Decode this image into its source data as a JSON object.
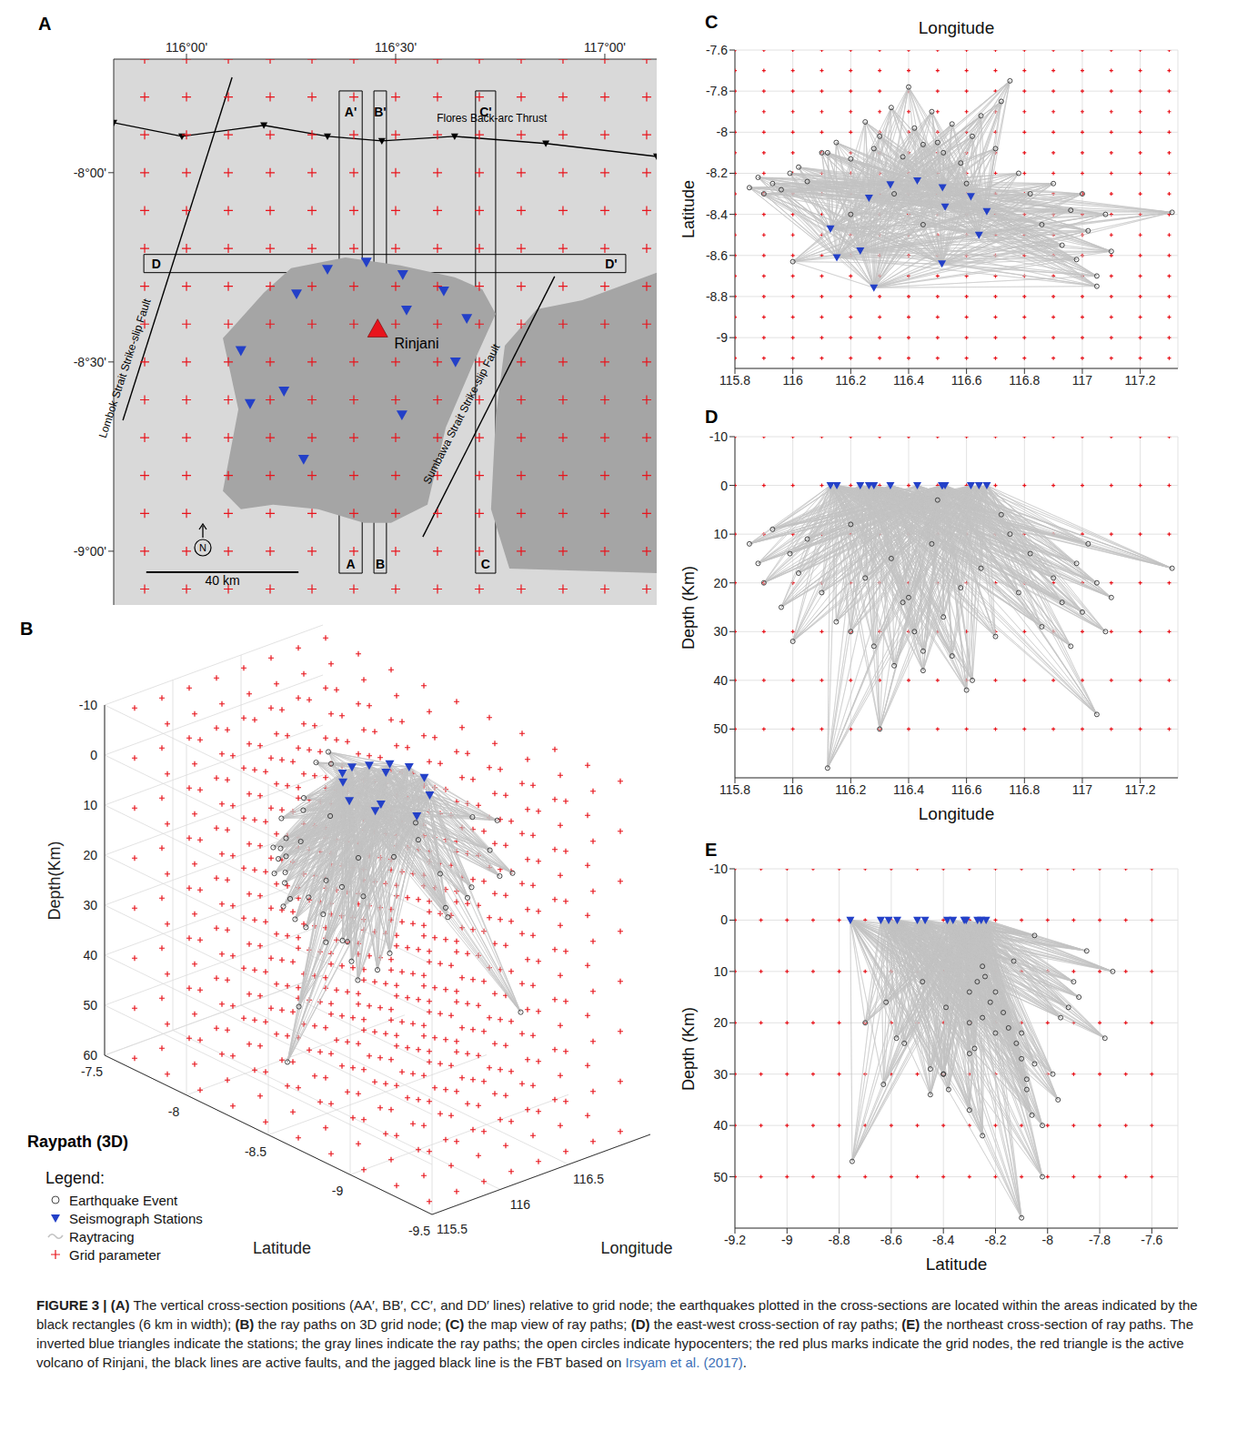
{
  "chart_data": [
    {
      "panel": "A",
      "type": "map",
      "grid": false,
      "xlim": [
        115.826,
        117.124
      ],
      "ylim": [
        -9.142,
        -7.7
      ],
      "xticks": [
        {
          "value": 116,
          "label": "116°00'"
        },
        {
          "value": 116.5,
          "label": "116°30'"
        },
        {
          "value": 117,
          "label": "117°00'"
        }
      ],
      "yticks": [
        {
          "value": -8,
          "label": "-8°00'"
        },
        {
          "value": -8.5,
          "label": "-8°30'"
        },
        {
          "value": -9,
          "label": "-9°00'"
        }
      ],
      "land": [
        [
          [
            116.087,
            -8.4375
          ],
          [
            116.185,
            -8.317
          ],
          [
            116.25,
            -8.252
          ],
          [
            116.38,
            -8.224
          ],
          [
            116.511,
            -8.245
          ],
          [
            116.641,
            -8.276
          ],
          [
            116.707,
            -8.308
          ],
          [
            116.739,
            -8.373
          ],
          [
            116.685,
            -8.505
          ],
          [
            116.62,
            -8.673
          ],
          [
            116.576,
            -8.877
          ],
          [
            116.489,
            -8.925
          ],
          [
            116.424,
            -8.925
          ],
          [
            116.315,
            -8.889
          ],
          [
            116.207,
            -8.877
          ],
          [
            116.13,
            -8.889
          ],
          [
            116.087,
            -8.841
          ],
          [
            116.124,
            -8.625
          ]
        ],
        [
          [
            117.124,
            -8.264
          ],
          [
            116.946,
            -8.337
          ],
          [
            116.837,
            -8.361
          ],
          [
            116.761,
            -8.457
          ],
          [
            116.739,
            -8.649
          ],
          [
            116.728,
            -8.889
          ],
          [
            116.772,
            -9.046
          ],
          [
            117.124,
            -9.058
          ]
        ]
      ],
      "faults": [
        {
          "label": "Lombok Strait Strike-slip Fault",
          "color": "#000000",
          "points": [
            [
              116.109,
              -7.748
            ],
            [
              115.848,
              -8.654
            ]
          ]
        },
        {
          "label": "Sumbawa Strait Strike-slip Fault",
          "color": "#000000",
          "points": [
            [
              116.88,
              -8.274
            ],
            [
              116.565,
              -8.962
            ]
          ]
        },
        {
          "label": "Flores Back-arc Thrust",
          "color": "#000000",
          "marker": "inverted-triangle",
          "points": [
            [
              115.826,
              -7.868
            ],
            [
              115.989,
              -7.904
            ],
            [
              116.185,
              -7.875
            ],
            [
              116.337,
              -7.904
            ],
            [
              116.467,
              -7.916
            ],
            [
              116.641,
              -7.904
            ],
            [
              116.859,
              -7.923
            ],
            [
              117.124,
              -7.957
            ]
          ]
        }
      ],
      "sections": [
        {
          "start": "A",
          "end": "A'",
          "lon": [
            116.365,
            116.42
          ],
          "lat": [
            -9.058,
            -7.784
          ]
        },
        {
          "start": "B",
          "end": "B'",
          "lon": [
            116.448,
            116.478
          ],
          "lat": [
            -9.058,
            -7.784
          ]
        },
        {
          "start": "C",
          "end": "C'",
          "lon": [
            116.691,
            116.739
          ],
          "lat": [
            -9.058,
            -7.784
          ]
        },
        {
          "start": "D",
          "end": "D'",
          "lon": [
            115.898,
            117.05
          ],
          "lat": [
            -8.264,
            -8.216
          ]
        }
      ],
      "volcano": {
        "name": "Rinjani",
        "lon": 116.457,
        "lat": -8.413,
        "color": "#e8141c",
        "marker": "triangle"
      },
      "scale_bar": {
        "label": "40 km",
        "length_km": 40
      },
      "north_label": "N"
    },
    {
      "panel": "B",
      "type": "scatter3d",
      "title": "Raypath (3D)",
      "grid": true,
      "xlabel": "Longitude",
      "ylabel": "Latitude",
      "zlabel": "Depth(Km)",
      "xlim": [
        115.5,
        117.1
      ],
      "ylim": [
        -9.5,
        -7.5
      ],
      "zlim": [
        -10,
        60
      ],
      "xticks": [
        115.5,
        116,
        116.5
      ],
      "yticks": [
        -7.5,
        -8,
        -8.5,
        -9,
        -9.5
      ],
      "zticks": [
        -10,
        0,
        10,
        20,
        30,
        40,
        50,
        60
      ]
    },
    {
      "panel": "C",
      "type": "scatter",
      "grid": true,
      "xlabel": "Longitude",
      "ylabel": "Latitude",
      "xlim": [
        115.8,
        117.33
      ],
      "ylim": [
        -9.15,
        -7.6
      ],
      "xticks": [
        115.8,
        116,
        116.2,
        116.4,
        116.6,
        116.8,
        117,
        117.2
      ],
      "yticks": [
        -9,
        -8.8,
        -8.6,
        -8.4,
        -8.2,
        -8,
        -7.8,
        -7.6
      ]
    },
    {
      "panel": "D",
      "type": "scatter",
      "grid": true,
      "xlabel": "Longitude",
      "ylabel": "Depth (Km)",
      "xlim": [
        115.8,
        117.33
      ],
      "ylim": [
        60,
        -10
      ],
      "xticks": [
        115.8,
        116,
        116.2,
        116.4,
        116.6,
        116.8,
        117,
        117.2
      ],
      "yticks": [
        -10,
        0,
        10,
        20,
        30,
        40,
        50
      ]
    },
    {
      "panel": "E",
      "type": "scatter",
      "grid": true,
      "xlabel": "Latitude",
      "ylabel": "Depth (Km)",
      "xlim": [
        -9.2,
        -7.5
      ],
      "ylim": [
        60,
        -10
      ],
      "xticks": [
        -9.2,
        -9,
        -8.8,
        -8.6,
        -8.4,
        -8.2,
        -8,
        -7.8,
        -7.6
      ],
      "yticks": [
        -10,
        0,
        10,
        20,
        30,
        40,
        50
      ]
    }
  ],
  "stations": [
    [
      116.337,
      -8.255,
      0
    ],
    [
      116.43,
      -8.236,
      0
    ],
    [
      116.517,
      -8.269,
      0
    ],
    [
      116.615,
      -8.3125,
      0
    ],
    [
      116.67,
      -8.385,
      0
    ],
    [
      116.263,
      -8.32,
      0
    ],
    [
      116.526,
      -8.363,
      0
    ],
    [
      116.13,
      -8.47,
      0
    ],
    [
      116.152,
      -8.61,
      0
    ],
    [
      116.233,
      -8.577,
      0
    ],
    [
      116.643,
      -8.5,
      0
    ],
    [
      116.515,
      -8.64,
      0
    ],
    [
      116.28,
      -8.757,
      0
    ]
  ],
  "events": [
    [
      115.85,
      -8.27,
      12
    ],
    [
      115.88,
      -8.22,
      16
    ],
    [
      115.9,
      -8.3,
      20
    ],
    [
      115.93,
      -8.25,
      9
    ],
    [
      115.96,
      -8.28,
      25
    ],
    [
      115.99,
      -8.2,
      14
    ],
    [
      116.02,
      -8.17,
      18
    ],
    [
      116.05,
      -8.24,
      11
    ],
    [
      116.1,
      -8.1,
      22
    ],
    [
      116.15,
      -8.05,
      28
    ],
    [
      116.2,
      -8.13,
      8
    ],
    [
      116.25,
      -7.95,
      19
    ],
    [
      116.28,
      -8.08,
      33
    ],
    [
      116.3,
      -8.02,
      50
    ],
    [
      116.34,
      -7.88,
      15
    ],
    [
      116.38,
      -8.12,
      24
    ],
    [
      116.42,
      -7.98,
      30
    ],
    [
      116.45,
      -8.06,
      38
    ],
    [
      116.48,
      -7.9,
      12
    ],
    [
      116.52,
      -8.1,
      27
    ],
    [
      116.55,
      -7.96,
      35
    ],
    [
      116.58,
      -8.15,
      21
    ],
    [
      116.62,
      -8.02,
      40
    ],
    [
      116.65,
      -7.92,
      17
    ],
    [
      116.7,
      -8.08,
      31
    ],
    [
      116.72,
      -7.85,
      6
    ],
    [
      116.78,
      -8.2,
      22
    ],
    [
      116.82,
      -8.3,
      14
    ],
    [
      116.86,
      -8.45,
      29
    ],
    [
      116.9,
      -8.25,
      19
    ],
    [
      116.93,
      -8.55,
      24
    ],
    [
      116.96,
      -8.38,
      33
    ],
    [
      116.98,
      -8.62,
      16
    ],
    [
      117,
      -8.3,
      26
    ],
    [
      117.02,
      -8.48,
      12
    ],
    [
      117.05,
      -8.7,
      20
    ],
    [
      117.08,
      -8.4,
      30
    ],
    [
      117.1,
      -8.58,
      23
    ],
    [
      117.05,
      -8.75,
      47
    ],
    [
      117.31,
      -8.39,
      17
    ],
    [
      116.35,
      -8.3,
      37
    ],
    [
      116.6,
      -8.25,
      42
    ],
    [
      116.45,
      -8.45,
      34
    ],
    [
      116.2,
      -8.4,
      30
    ],
    [
      116.12,
      -8.1,
      58
    ],
    [
      116,
      -8.63,
      32
    ],
    [
      116.5,
      -8.05,
      3
    ],
    [
      116.75,
      -7.75,
      10
    ],
    [
      116.4,
      -7.78,
      23
    ]
  ],
  "grid_nodes": {
    "lon": [
      115.8,
      115.9,
      116,
      116.1,
      116.2,
      116.3,
      116.4,
      116.5,
      116.6,
      116.7,
      116.8,
      116.9,
      117,
      117.1,
      117.2,
      117.3
    ],
    "lat": [
      -7.6,
      -7.7,
      -7.8,
      -7.9,
      -8,
      -8.1,
      -8.2,
      -8.3,
      -8.4,
      -8.5,
      -8.6,
      -8.7,
      -8.8,
      -8.9,
      -9,
      -9.1,
      -9.2
    ],
    "depth": [
      -10,
      0,
      10,
      20,
      30,
      40,
      50
    ]
  },
  "grid_nodes_3d": {
    "lon": [
      115.6,
      115.8,
      116,
      116.2,
      116.4,
      116.6,
      116.8,
      117
    ],
    "lat": [
      -7.6,
      -7.8,
      -8,
      -8.2,
      -8.4,
      -8.6,
      -8.8,
      -9,
      -9.2,
      -9.4
    ],
    "depth": [
      -10,
      0,
      10,
      20,
      30,
      40,
      50,
      60
    ]
  },
  "legend_box": {
    "title": "Legend:",
    "items": [
      {
        "label": "Earthquake Event",
        "marker": "open-circle",
        "color": "#333333"
      },
      {
        "label": "Seismograph Stations",
        "marker": "inverted-triangle",
        "color": "#2340c8"
      },
      {
        "label": "Raytracing",
        "marker": "line",
        "color": "#c2c2c2"
      },
      {
        "label": "Grid parameter",
        "marker": "plus",
        "color": "#e8141c"
      }
    ]
  },
  "caption": [
    {
      "text": "FIGURE 3 | ",
      "bold": true
    },
    {
      "text": "(A)",
      "bold": true
    },
    {
      "text": " The vertical cross-section positions (AA′, BB′, CC′, and DD′ lines) relative to grid node; the earthquakes plotted in the cross-sections are located within the areas indicated by the black rectangles (6 km in width); "
    },
    {
      "text": "(B)",
      "bold": true
    },
    {
      "text": " the ray paths on 3D grid node; "
    },
    {
      "text": "(C)",
      "bold": true
    },
    {
      "text": " the map view of ray paths; "
    },
    {
      "text": "(D)",
      "bold": true
    },
    {
      "text": " the east-west cross-section of ray paths; "
    },
    {
      "text": "(E)",
      "bold": true
    },
    {
      "text": " the northeast cross-section of ray paths. The inverted blue triangles indicate the stations; the gray lines indicate the ray paths; the open circles indicate hypocenters; the red plus marks indicate the grid nodes, the red triangle is the active volcano of Rinjani, the black lines are active faults, and the jagged black line is the FBT based on "
    },
    {
      "text": "Irsyam et al. (2017)",
      "link": true
    },
    {
      "text": "."
    }
  ]
}
